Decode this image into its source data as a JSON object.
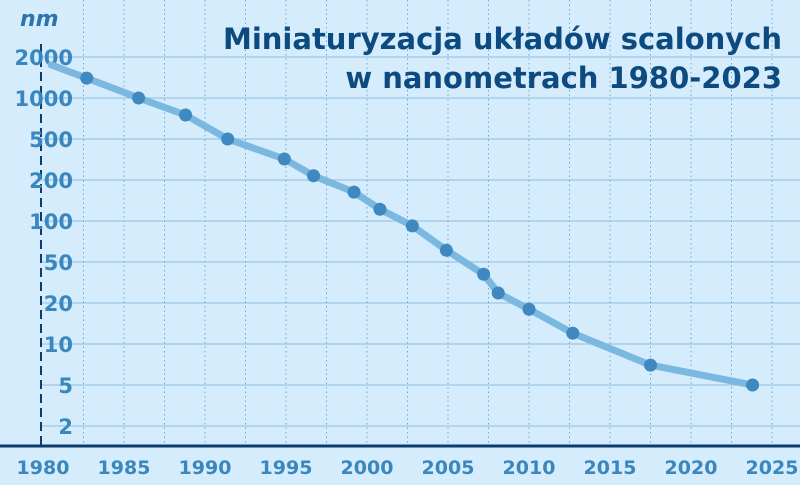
{
  "chart_data": {
    "type": "line",
    "title": [
      "Miniaturyzacja układów scalonych",
      "w nanometrach 1980-2023"
    ],
    "ylabel": "nm",
    "xlabel": "",
    "xlim": [
      1980,
      2025
    ],
    "x_ticks": [
      1980,
      1985,
      1990,
      1995,
      2000,
      2005,
      2010,
      2015,
      2020,
      2025
    ],
    "x_minor_grid_step": 2.5,
    "y_scale": "logarithmic (evenly spaced labelled levels)",
    "y_ticks": [
      2000,
      1000,
      500,
      200,
      100,
      50,
      20,
      10,
      5,
      2
    ],
    "grid": true,
    "legend": "none",
    "line_start": {
      "x": 1980.5,
      "y": 1750
    },
    "series": [
      {
        "points": [
          {
            "x": 1982.7,
            "y": 1400
          },
          {
            "x": 1985.9,
            "y": 1000
          },
          {
            "x": 1988.8,
            "y": 750
          },
          {
            "x": 1991.4,
            "y": 500
          },
          {
            "x": 1994.9,
            "y": 320
          },
          {
            "x": 1996.7,
            "y": 220
          },
          {
            "x": 1999.2,
            "y": 163
          },
          {
            "x": 2000.8,
            "y": 122
          },
          {
            "x": 2002.8,
            "y": 92
          },
          {
            "x": 2004.9,
            "y": 61
          },
          {
            "x": 2007.2,
            "y": 38
          },
          {
            "x": 2008.1,
            "y": 25
          },
          {
            "x": 2010.0,
            "y": 18
          },
          {
            "x": 2012.7,
            "y": 12
          },
          {
            "x": 2017.5,
            "y": 7
          },
          {
            "x": 2023.8,
            "y": 5
          }
        ]
      }
    ],
    "colors": {
      "background": "#d4ecfc",
      "title": "#0d4a80",
      "tick_labels": "#3a86be",
      "line": "#7ab8e0",
      "markers": "#3f88c0",
      "grid": "#a6cde8",
      "axis": "#0d3c6e"
    }
  }
}
